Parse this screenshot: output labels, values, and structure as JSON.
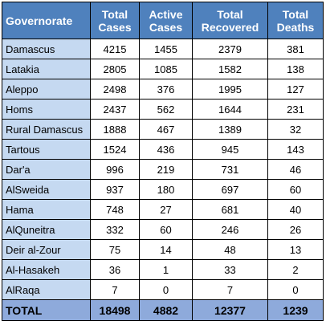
{
  "headers": {
    "governorate": "Governorate",
    "total_cases": [
      "Total",
      "Cases"
    ],
    "active_cases": [
      "Active",
      "Cases"
    ],
    "total_recovered": [
      "Total",
      "Recovered"
    ],
    "total_deaths": [
      "Total",
      "Deaths"
    ]
  },
  "rows": [
    {
      "name": "Damascus",
      "total": "4215",
      "active": "1455",
      "recovered": "2379",
      "deaths": "381"
    },
    {
      "name": "Latakia",
      "total": "2805",
      "active": "1085",
      "recovered": "1582",
      "deaths": "138"
    },
    {
      "name": "Aleppo",
      "total": "2498",
      "active": "376",
      "recovered": "1995",
      "deaths": "127"
    },
    {
      "name": "Homs",
      "total": "2437",
      "active": "562",
      "recovered": "1644",
      "deaths": "231"
    },
    {
      "name": "Rural Damascus",
      "total": "1888",
      "active": "467",
      "recovered": "1389",
      "deaths": "32"
    },
    {
      "name": "Tartous",
      "total": "1524",
      "active": "436",
      "recovered": "945",
      "deaths": "143"
    },
    {
      "name": "Dar'a",
      "total": "996",
      "active": "219",
      "recovered": "731",
      "deaths": "46"
    },
    {
      "name": "AlSweida",
      "total": "937",
      "active": "180",
      "recovered": "697",
      "deaths": "60"
    },
    {
      "name": "Hama",
      "total": "748",
      "active": "27",
      "recovered": "681",
      "deaths": "40"
    },
    {
      "name": "AlQuneitra",
      "total": "332",
      "active": "60",
      "recovered": "246",
      "deaths": "26"
    },
    {
      "name": "Deir al-Zour",
      "total": "75",
      "active": "14",
      "recovered": "48",
      "deaths": "13"
    },
    {
      "name": "Al-Hasakeh",
      "total": "36",
      "active": "1",
      "recovered": "33",
      "deaths": "2"
    },
    {
      "name": "AlRaqa",
      "total": "7",
      "active": "0",
      "recovered": "7",
      "deaths": "0"
    }
  ],
  "total_row": {
    "name": "TOTAL",
    "total": "18498",
    "active": "4882",
    "recovered": "12377",
    "deaths": "1239"
  },
  "colors": {
    "header_bg": "#4f81bd",
    "name_col_bg": "#c5d9f1",
    "total_row_bg": "#8eaadb"
  }
}
